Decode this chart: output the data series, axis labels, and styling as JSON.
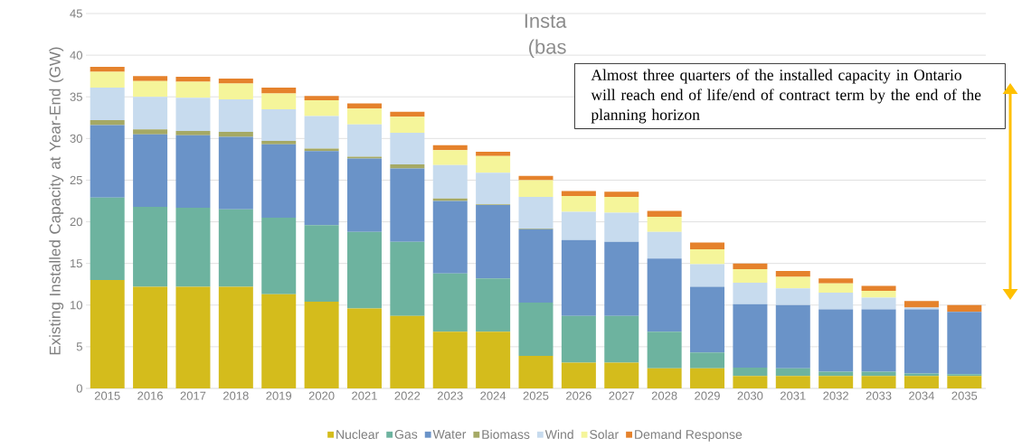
{
  "chart_data": {
    "type": "bar",
    "stacked": true,
    "title": "Insta",
    "subtitle": "(bas",
    "ylabel": "Existing Installed Capacity at Year-End (GW)",
    "annotations": [
      "Almost three quarters of the installed capacity in Ontario will reach end of life/end of contract term by the end of the planning horizon"
    ],
    "categories": [
      "2015",
      "2016",
      "2017",
      "2018",
      "2019",
      "2020",
      "2021",
      "2022",
      "2023",
      "2024",
      "2025",
      "2026",
      "2027",
      "2028",
      "2029",
      "2030",
      "2031",
      "2032",
      "2033",
      "2034",
      "2035"
    ],
    "series": [
      {
        "name": "Nuclear",
        "color": "#d4bc1c",
        "values": [
          13,
          12.2,
          12.2,
          12.2,
          11.3,
          10.4,
          9.6,
          8.7,
          6.8,
          6.8,
          3.9,
          3.1,
          3.1,
          2.4,
          2.4,
          1.5,
          1.5,
          1.5,
          1.5,
          1.5,
          1.5
        ]
      },
      {
        "name": "Gas",
        "color": "#6db39f",
        "values": [
          9.9,
          9.6,
          9.5,
          9.3,
          9.2,
          9.2,
          9.2,
          8.9,
          7.0,
          6.4,
          6.4,
          5.6,
          5.6,
          4.4,
          1.9,
          1.0,
          0.9,
          0.5,
          0.5,
          0.3,
          0.2
        ]
      },
      {
        "name": "Water",
        "color": "#6a93c8",
        "values": [
          8.7,
          8.7,
          8.7,
          8.7,
          8.8,
          8.9,
          8.8,
          8.8,
          8.7,
          8.8,
          8.8,
          9.1,
          8.9,
          8.8,
          7.9,
          7.6,
          7.6,
          7.5,
          7.5,
          7.7,
          7.5
        ]
      },
      {
        "name": "Biomass",
        "color": "#a5a965",
        "values": [
          0.6,
          0.6,
          0.5,
          0.6,
          0.4,
          0.3,
          0.2,
          0.5,
          0.3,
          0.1,
          0.1,
          0,
          0,
          0,
          0,
          0,
          0,
          0,
          0,
          0,
          0
        ]
      },
      {
        "name": "Wind",
        "color": "#c7dbee",
        "values": [
          3.9,
          3.9,
          4.0,
          3.9,
          3.8,
          3.9,
          3.9,
          3.8,
          4.0,
          3.8,
          3.8,
          3.4,
          3.5,
          3.2,
          2.7,
          2.6,
          2.0,
          2.0,
          1.4,
          0.2,
          0
        ]
      },
      {
        "name": "Solar",
        "color": "#f5f59a",
        "values": [
          1.9,
          1.9,
          1.9,
          1.9,
          1.9,
          1.9,
          1.9,
          1.9,
          1.8,
          2.0,
          2.0,
          1.9,
          1.9,
          1.8,
          1.8,
          1.6,
          1.4,
          1.1,
          0.8,
          0,
          0
        ]
      },
      {
        "name": "Demand Response",
        "color": "#e5822c",
        "values": [
          0.6,
          0.6,
          0.6,
          0.6,
          0.7,
          0.5,
          0.6,
          0.6,
          0.6,
          0.5,
          0.5,
          0.6,
          0.6,
          0.7,
          0.8,
          0.7,
          0.7,
          0.6,
          0.6,
          0.8,
          0.8
        ]
      }
    ],
    "ylim": [
      0,
      45
    ],
    "yticks": [
      0,
      5,
      10,
      15,
      20,
      25,
      30,
      35,
      40,
      45
    ],
    "grid": "y",
    "legend": "bottom"
  }
}
